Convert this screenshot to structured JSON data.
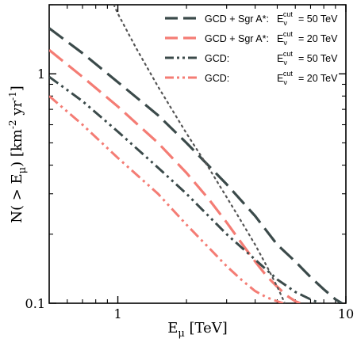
{
  "chart_data": {
    "type": "line",
    "xlabel": "E_μ [TeV]",
    "ylabel": "N( > E_μ) [km⁻² yr⁻¹]",
    "xscale": "log",
    "yscale": "log",
    "xlim": [
      0.5,
      10
    ],
    "ylim": [
      0.1,
      2
    ],
    "grid": false,
    "legend_position": "top-right",
    "x_ticks": [
      {
        "value": 1,
        "label": "1"
      },
      {
        "value": 10,
        "label": "10"
      }
    ],
    "y_ticks": [
      {
        "value": 0.1,
        "label": "0.1"
      },
      {
        "value": 1,
        "label": "1"
      }
    ],
    "series": [
      {
        "name": "GCD + Sgr A*:  E_ν^cut = 50 TeV",
        "legend_left": "GCD + Sgr A*:",
        "legend_right": "= 50 TeV",
        "color": "#3b4a4a",
        "style": "dashed",
        "x": [
          0.5,
          0.7,
          1.0,
          1.5,
          2.0,
          3.0,
          4.0,
          5.0,
          6.0,
          7.0,
          8.0,
          9.0,
          9.6
        ],
        "y": [
          1.58,
          1.23,
          0.92,
          0.66,
          0.5,
          0.33,
          0.24,
          0.18,
          0.152,
          0.13,
          0.115,
          0.104,
          0.1
        ]
      },
      {
        "name": "GCD + Sgr A*:  E_ν^cut = 20 TeV",
        "legend_left": "GCD + Sgr A*:",
        "legend_right": "= 20 TeV",
        "color": "#f47c74",
        "style": "dashed",
        "x": [
          0.5,
          0.7,
          1.0,
          1.5,
          2.0,
          2.5,
          3.0,
          3.5,
          4.0,
          4.5,
          5.0,
          5.5,
          6.0,
          6.3
        ],
        "y": [
          1.27,
          0.97,
          0.72,
          0.5,
          0.37,
          0.285,
          0.225,
          0.182,
          0.152,
          0.131,
          0.118,
          0.108,
          0.102,
          0.1
        ]
      },
      {
        "name": "GCD:  E_ν^cut = 50 TeV",
        "legend_left": "GCD:",
        "legend_right": "= 50 TeV",
        "color": "#3b4a4a",
        "style": "dashdot",
        "x": [
          0.5,
          0.7,
          1.0,
          1.5,
          2.0,
          3.0,
          4.0,
          5.0,
          6.0,
          7.0,
          7.7
        ],
        "y": [
          0.97,
          0.76,
          0.56,
          0.39,
          0.3,
          0.2,
          0.155,
          0.127,
          0.112,
          0.104,
          0.1
        ]
      },
      {
        "name": "GCD:  E_ν^cut = 20 TeV",
        "legend_left": "GCD:",
        "legend_right": "= 20 TeV",
        "color": "#f47c74",
        "style": "dashdot",
        "x": [
          0.5,
          0.7,
          1.0,
          1.5,
          2.0,
          2.5,
          3.0,
          3.5,
          4.0,
          4.5,
          5.0,
          5.3
        ],
        "y": [
          0.8,
          0.6,
          0.43,
          0.3,
          0.22,
          0.175,
          0.145,
          0.126,
          0.113,
          0.106,
          0.102,
          0.1
        ]
      },
      {
        "name": "",
        "color": "#555555",
        "style": "dotted",
        "x": [
          0.96,
          1.0,
          1.2,
          1.5,
          2.0,
          2.5,
          3.0,
          3.5,
          4.0,
          4.5,
          5.0,
          5.4
        ],
        "y": [
          2.0,
          1.83,
          1.3,
          0.88,
          0.55,
          0.39,
          0.29,
          0.225,
          0.18,
          0.145,
          0.118,
          0.1
        ]
      }
    ]
  }
}
